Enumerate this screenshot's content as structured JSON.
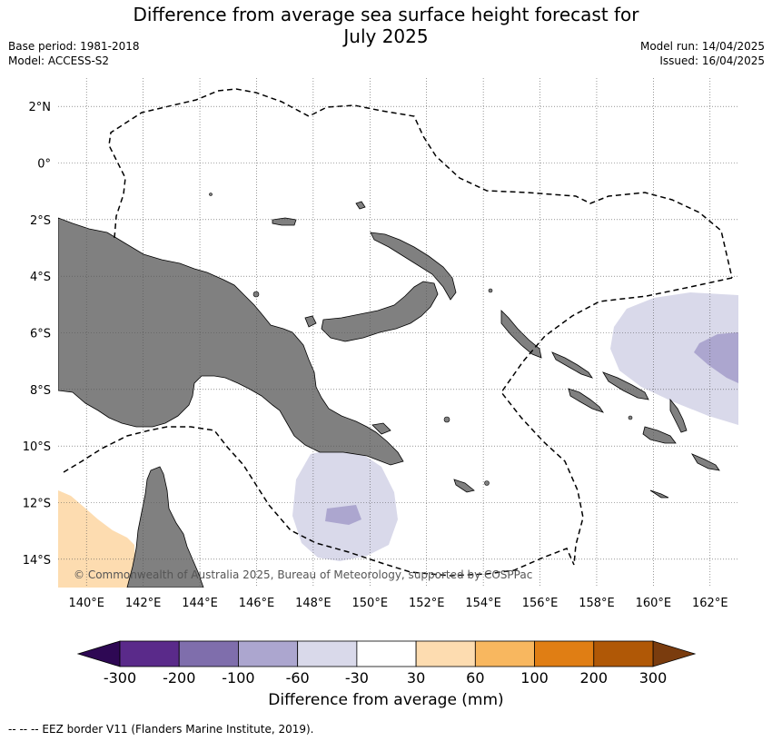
{
  "title_line1": "Difference from average sea surface height forecast for",
  "title_line2": "July 2025",
  "base_period": "Base period: 1981-2018",
  "model": "Model: ACCESS-S2",
  "model_run": "Model run: 14/04/2025",
  "issued": "Issued: 16/04/2025",
  "map": {
    "lon_range": [
      139,
      163
    ],
    "lat_range": [
      -15,
      3
    ],
    "lat_ticks": [
      "2°N",
      "0°",
      "2°S",
      "4°S",
      "6°S",
      "8°S",
      "10°S",
      "12°S",
      "14°S"
    ],
    "lat_values": [
      2,
      0,
      -2,
      -4,
      -6,
      -8,
      -10,
      -12,
      -14
    ],
    "lon_ticks": [
      "140°E",
      "142°E",
      "144°E",
      "146°E",
      "148°E",
      "150°E",
      "152°E",
      "154°E",
      "156°E",
      "158°E",
      "160°E",
      "162°E"
    ],
    "lon_values": [
      140,
      142,
      144,
      146,
      148,
      150,
      152,
      154,
      156,
      158,
      160,
      162
    ],
    "land_color": "#808080",
    "copyright": "© Commonwealth of Australia 2025, Bureau of Meteorology, supported by COSPPac"
  },
  "colorbar": {
    "tick_labels": [
      "-300",
      "-200",
      "-100",
      "-60",
      "-30",
      "30",
      "60",
      "100",
      "200",
      "300"
    ],
    "colors": [
      "#5a2a8a",
      "#7f6eac",
      "#aca6cf",
      "#d9d9ea",
      "#ffffff",
      "#fddcb0",
      "#f8b75f",
      "#e07e14",
      "#b05806"
    ],
    "under_color": "#2e0854",
    "over_color": "#7a3c0e",
    "label": "Difference from average (mm)"
  },
  "footnote": "--  --  -- EEZ border V11 (Flanders Marine Institute, 2019)."
}
